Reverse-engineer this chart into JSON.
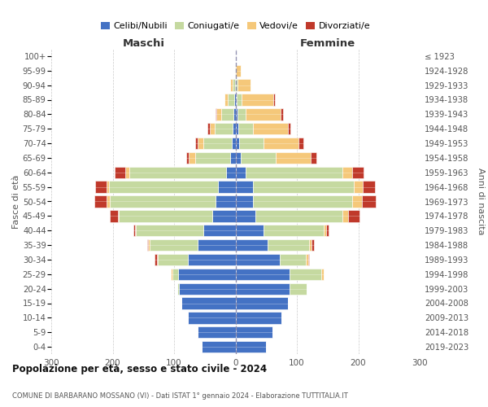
{
  "age_groups": [
    "0-4",
    "5-9",
    "10-14",
    "15-19",
    "20-24",
    "25-29",
    "30-34",
    "35-39",
    "40-44",
    "45-49",
    "50-54",
    "55-59",
    "60-64",
    "65-69",
    "70-74",
    "75-79",
    "80-84",
    "85-89",
    "90-94",
    "95-99",
    "100+"
  ],
  "birth_years": [
    "2019-2023",
    "2014-2018",
    "2009-2013",
    "2004-2008",
    "1999-2003",
    "1994-1998",
    "1989-1993",
    "1984-1988",
    "1979-1983",
    "1974-1978",
    "1969-1973",
    "1964-1968",
    "1959-1963",
    "1954-1958",
    "1949-1953",
    "1944-1948",
    "1939-1943",
    "1934-1938",
    "1929-1933",
    "1924-1928",
    "≤ 1923"
  ],
  "colors": {
    "celibi": "#4472c4",
    "coniugati": "#c5d9a0",
    "vedovi": "#f5c87a",
    "divorziati": "#c0392b"
  },
  "males": {
    "celibi": [
      55,
      62,
      78,
      88,
      92,
      93,
      78,
      62,
      52,
      38,
      32,
      28,
      15,
      8,
      6,
      4,
      3,
      2,
      1,
      0,
      0
    ],
    "coniugati": [
      0,
      0,
      0,
      0,
      3,
      10,
      48,
      78,
      110,
      152,
      172,
      178,
      158,
      58,
      46,
      30,
      20,
      10,
      4,
      0,
      0
    ],
    "vedovi": [
      0,
      0,
      0,
      0,
      0,
      2,
      2,
      2,
      2,
      2,
      6,
      4,
      6,
      10,
      10,
      8,
      8,
      6,
      4,
      1,
      0
    ],
    "divorziati": [
      0,
      0,
      0,
      0,
      0,
      0,
      4,
      2,
      2,
      12,
      20,
      18,
      18,
      4,
      4,
      4,
      2,
      0,
      0,
      0,
      0
    ]
  },
  "females": {
    "nubili": [
      50,
      60,
      75,
      85,
      88,
      88,
      72,
      52,
      46,
      32,
      28,
      28,
      16,
      8,
      6,
      4,
      3,
      2,
      1,
      0,
      0
    ],
    "coniugate": [
      0,
      0,
      0,
      0,
      28,
      52,
      42,
      68,
      98,
      142,
      162,
      165,
      158,
      58,
      40,
      25,
      14,
      8,
      2,
      0,
      0
    ],
    "vedove": [
      0,
      0,
      0,
      0,
      0,
      4,
      4,
      4,
      4,
      10,
      16,
      14,
      16,
      56,
      56,
      56,
      56,
      52,
      22,
      8,
      1
    ],
    "divorziate": [
      0,
      0,
      0,
      0,
      0,
      0,
      2,
      4,
      4,
      18,
      22,
      20,
      18,
      10,
      8,
      4,
      4,
      2,
      0,
      0,
      0
    ]
  },
  "title": "Popolazione per età, sesso e stato civile - 2024",
  "subtitle": "COMUNE DI BARBARANO MOSSANO (VI) - Dati ISTAT 1° gennaio 2024 - Elaborazione TUTTITALIA.IT",
  "legend_labels": [
    "Celibi/Nubili",
    "Coniugati/e",
    "Vedovi/e",
    "Divorziati/e"
  ],
  "xlim": 300,
  "maschi_label": "Maschi",
  "femmine_label": "Femmine",
  "fasce_label": "Fasce di età",
  "anni_label": "Anni di nascita",
  "background_color": "#ffffff",
  "grid_color": "#bbbbbb"
}
